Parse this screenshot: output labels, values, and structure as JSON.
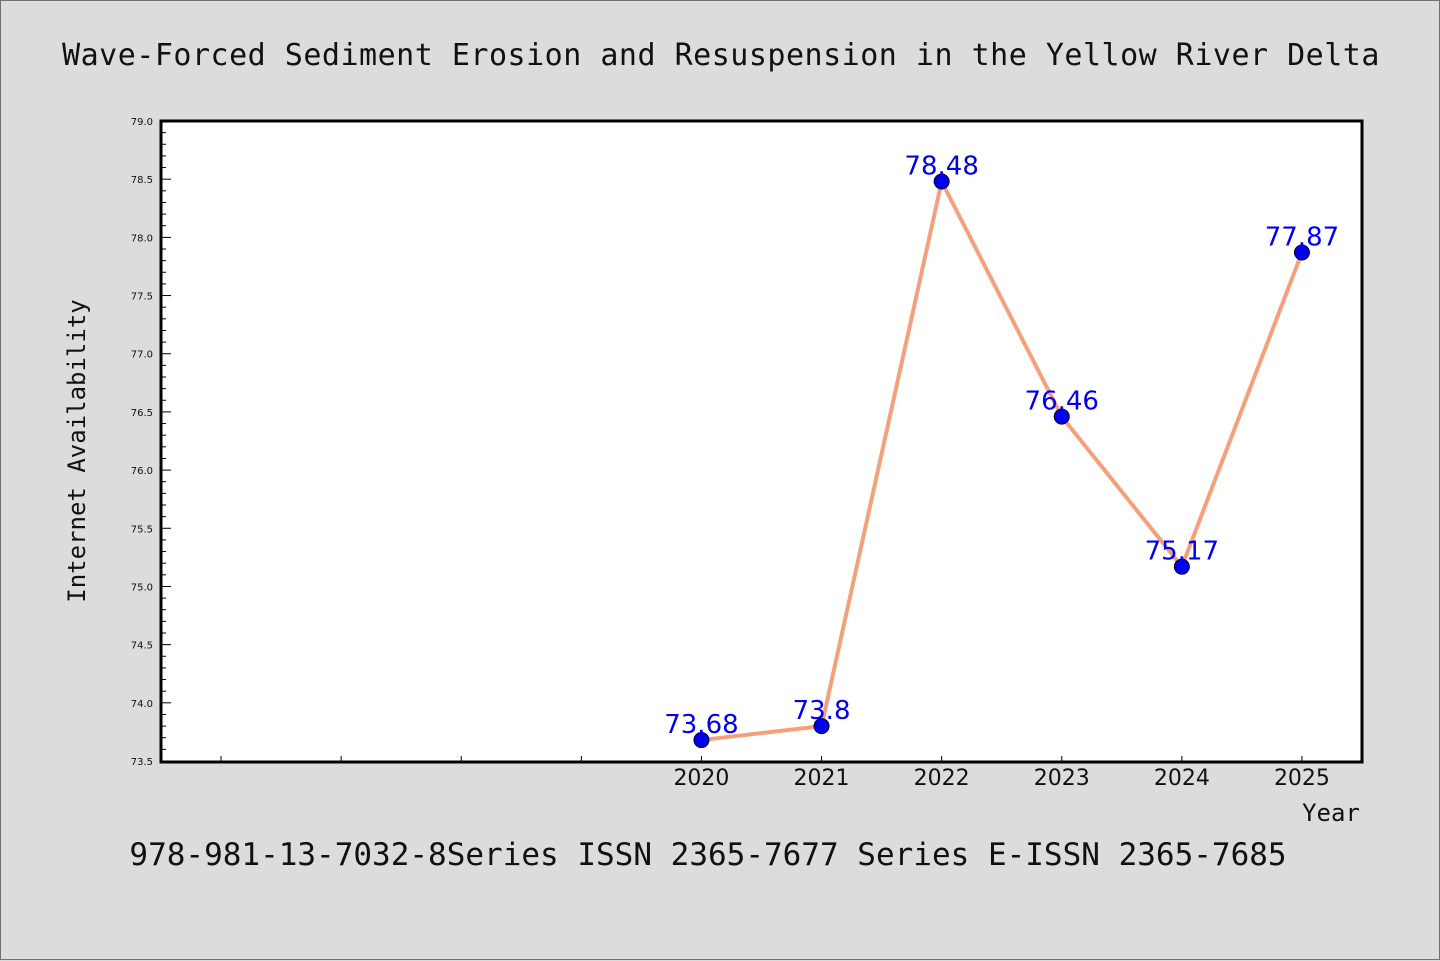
{
  "chart_data": {
    "type": "line",
    "title": "Wave-Forced Sediment Erosion and Resuspension in the Yellow River Delta",
    "xlabel": "Year",
    "ylabel": "Internet Availability",
    "x": [
      2020,
      2021,
      2022,
      2023,
      2024,
      2025
    ],
    "x_tick_labels": [
      "2020",
      "2021",
      "2022",
      "2023",
      "2024",
      "2025"
    ],
    "x_range": [
      2015.5,
      2025.5
    ],
    "series": [
      {
        "values": [
          73.68,
          73.8,
          78.48,
          76.46,
          75.17,
          77.87
        ],
        "labels": [
          "73.68",
          "73.8",
          "78.48",
          "76.46",
          "75.17",
          "77.87"
        ],
        "line_color": "#f5a07c",
        "marker_color": "#0000ee"
      }
    ],
    "ylim": [
      73.5,
      79.0
    ],
    "y_tick_labels": [
      "73.5",
      "74.0",
      "74.5",
      "75.0",
      "75.5",
      "76.0",
      "76.5",
      "77.0",
      "77.5",
      "78.0",
      "78.5",
      "79.0"
    ],
    "grid": false,
    "legend": "none"
  },
  "footer_text": "978-981-13-7032-8Series ISSN 2365-7677 Series E-ISSN 2365-7685"
}
